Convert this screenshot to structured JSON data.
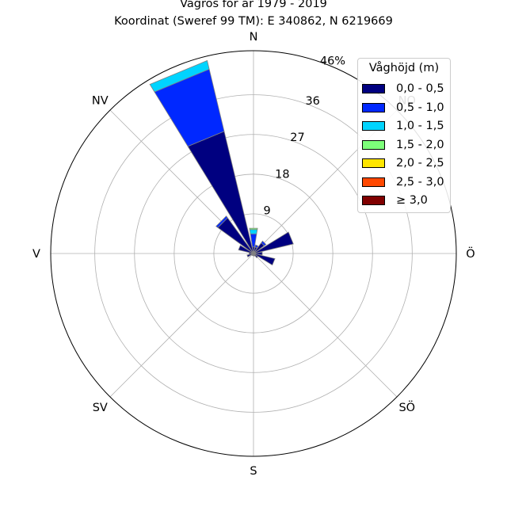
{
  "title": {
    "line1": "Vågros för år 1979 - 2019",
    "line2": "Koordinat (Sweref 99 TM): E 340862, N 6219669"
  },
  "chart_data": {
    "type": "polar-stacked-bar",
    "title": "Vågros för år 1979 - 2019",
    "subtitle": "Koordinat (Sweref 99 TM): E 340862, N 6219669",
    "directions": [
      "N",
      "NO",
      "Ö",
      "SÖ",
      "S",
      "SV",
      "V",
      "NV"
    ],
    "direction_labels": [
      "N",
      "NO",
      "Ö",
      "SÖ",
      "S",
      "SV",
      "V",
      "NV"
    ],
    "radial_ticks": [
      9,
      18,
      27,
      36
    ],
    "radial_tick_labels": [
      "9",
      "18",
      "27",
      "36"
    ],
    "r_max": 46,
    "r_max_label": "46%",
    "grid": true,
    "legend": {
      "title": "Våghöjd (m)",
      "placement": "top-right"
    },
    "series": [
      {
        "name": "0,0 - 0,5",
        "color": "#000080"
      },
      {
        "name": "0,5 - 1,0",
        "color": "#0028ff"
      },
      {
        "name": "1,0 - 1,5",
        "color": "#00d4ff"
      },
      {
        "name": "1,5 - 2,0",
        "color": "#7dff7a"
      },
      {
        "name": "2,0 - 2,5",
        "color": "#ffe600"
      },
      {
        "name": "2,5 - 3,0",
        "color": "#ff4800"
      },
      {
        "name": "≥ 3,0",
        "color": "#800000"
      }
    ],
    "sectors": [
      {
        "direction_deg": 0,
        "values": [
          1.5,
          3.0,
          1.0,
          0.3,
          0,
          0,
          0
        ]
      },
      {
        "direction_deg": 22.5,
        "values": [
          1.5,
          0.5,
          0,
          0,
          0,
          0,
          0
        ]
      },
      {
        "direction_deg": 45,
        "values": [
          3.0,
          0.5,
          0,
          0,
          0,
          0,
          0
        ]
      },
      {
        "direction_deg": 67.5,
        "values": [
          9.3,
          0,
          0,
          0,
          0,
          0,
          0
        ]
      },
      {
        "direction_deg": 90,
        "values": [
          2.0,
          0,
          0,
          0,
          0,
          0,
          0
        ]
      },
      {
        "direction_deg": 112.5,
        "values": [
          5.0,
          0,
          0,
          0,
          0,
          0,
          0
        ]
      },
      {
        "direction_deg": 135,
        "values": [
          1.2,
          0,
          0,
          0,
          0,
          0,
          0
        ]
      },
      {
        "direction_deg": 157.5,
        "values": [
          0.6,
          0,
          0,
          0,
          0,
          0,
          0
        ]
      },
      {
        "direction_deg": 180,
        "values": [
          0.5,
          0,
          0,
          0,
          0,
          0,
          0
        ]
      },
      {
        "direction_deg": 202.5,
        "values": [
          0.5,
          0,
          0,
          0,
          0,
          0,
          0
        ]
      },
      {
        "direction_deg": 225,
        "values": [
          0.5,
          0,
          0,
          0,
          0,
          0,
          0
        ]
      },
      {
        "direction_deg": 247.5,
        "values": [
          1.5,
          0,
          0,
          0,
          0,
          0,
          0
        ]
      },
      {
        "direction_deg": 270,
        "values": [
          1.0,
          0,
          0,
          0,
          0,
          0,
          0
        ]
      },
      {
        "direction_deg": 292.5,
        "values": [
          3.5,
          0,
          0,
          0,
          0,
          0,
          0
        ]
      },
      {
        "direction_deg": 315,
        "values": [
          10.0,
          0.5,
          0,
          0,
          0,
          0,
          0
        ]
      },
      {
        "direction_deg": 337.5,
        "values": [
          28.5,
          14.5,
          2.0,
          0,
          0,
          0,
          0
        ]
      }
    ]
  }
}
